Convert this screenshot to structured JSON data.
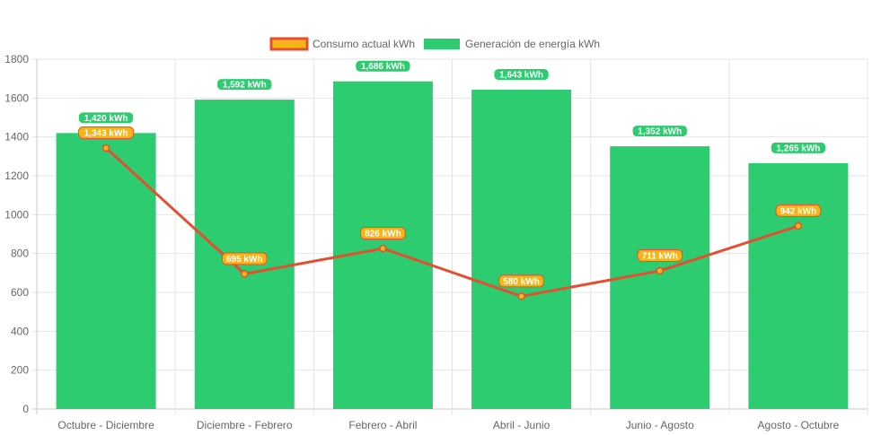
{
  "chart_data": {
    "type": "bar",
    "categories": [
      "Octubre - Diciembre",
      "Diciembre - Febrero",
      "Febrero - Abril",
      "Abril - Junio",
      "Junio - Agosto",
      "Agosto - Octubre"
    ],
    "series": [
      {
        "name": "Consumo actual kWh",
        "type": "line",
        "values": [
          1343,
          695,
          826,
          580,
          711,
          942
        ],
        "labels": [
          "1,343 kWh",
          "695 kWh",
          "826 kWh",
          "580 kWh",
          "711 kWh",
          "942 kWh"
        ],
        "line_color": "#e4502f",
        "fill_color": "#f5b417"
      },
      {
        "name": "Generación de energía kWh",
        "type": "bar",
        "values": [
          1420,
          1592,
          1686,
          1643,
          1352,
          1265
        ],
        "labels": [
          "1,420 kWh",
          "1,592 kWh",
          "1,686 kWh",
          "1,643 kWh",
          "1,352 kWh",
          "1,265 kWh"
        ],
        "color": "#2ecc71"
      }
    ],
    "ylim": [
      0,
      1800
    ],
    "yticks": [
      0,
      200,
      400,
      600,
      800,
      1000,
      1200,
      1400,
      1600,
      1800
    ],
    "grid": true,
    "legend_position": "top"
  }
}
